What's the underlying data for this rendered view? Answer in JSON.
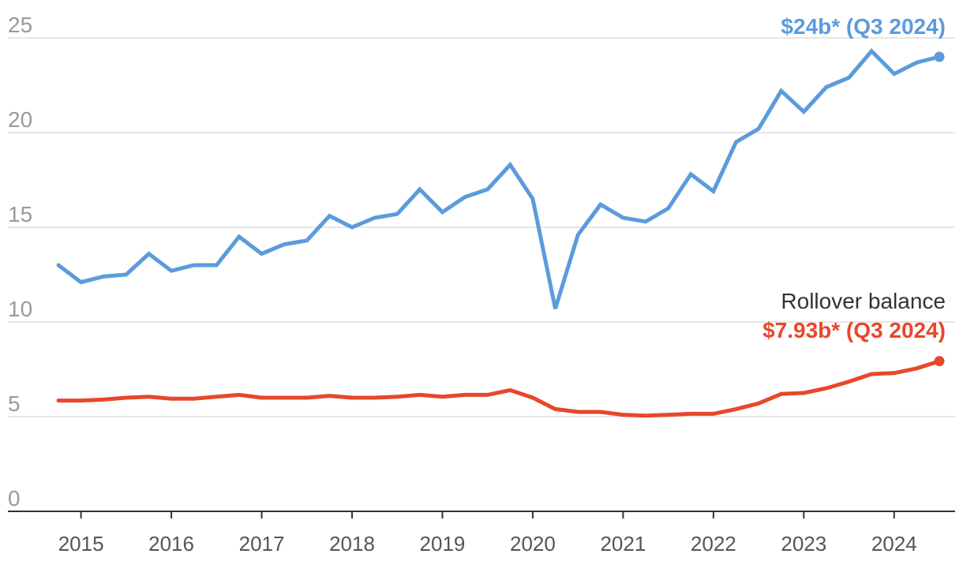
{
  "chart_data": {
    "type": "line",
    "title": "",
    "xlabel": "",
    "ylabel": "",
    "ylim": [
      0,
      25
    ],
    "yticks": [
      0,
      5,
      10,
      15,
      20,
      25
    ],
    "xticks": [
      "2015",
      "2016",
      "2017",
      "2018",
      "2019",
      "2020",
      "2021",
      "2022",
      "2023",
      "2024"
    ],
    "grid": true,
    "x": [
      "Q4 2014",
      "Q1 2015",
      "Q2 2015",
      "Q3 2015",
      "Q4 2015",
      "Q1 2016",
      "Q2 2016",
      "Q3 2016",
      "Q4 2016",
      "Q1 2017",
      "Q2 2017",
      "Q3 2017",
      "Q4 2017",
      "Q1 2018",
      "Q2 2018",
      "Q3 2018",
      "Q4 2018",
      "Q1 2019",
      "Q2 2019",
      "Q3 2019",
      "Q4 2019",
      "Q1 2020",
      "Q2 2020",
      "Q3 2020",
      "Q4 2020",
      "Q1 2021",
      "Q2 2021",
      "Q3 2021",
      "Q4 2021",
      "Q1 2022",
      "Q2 2022",
      "Q3 2022",
      "Q4 2022",
      "Q1 2023",
      "Q2 2023",
      "Q3 2023",
      "Q4 2023",
      "Q1 2024",
      "Q2 2024",
      "Q3 2024"
    ],
    "series": [
      {
        "name": "",
        "color": "#5b9bdc",
        "values": [
          13.0,
          12.1,
          12.4,
          12.5,
          13.6,
          12.7,
          13.0,
          13.0,
          14.5,
          13.6,
          14.1,
          14.3,
          15.6,
          15.0,
          15.5,
          15.7,
          17.0,
          15.8,
          16.6,
          17.0,
          18.3,
          16.5,
          10.7,
          14.6,
          16.2,
          15.5,
          15.3,
          16.0,
          17.8,
          16.9,
          19.5,
          20.2,
          22.2,
          21.1,
          22.4,
          22.9,
          24.3,
          23.1,
          23.7,
          24.0
        ]
      },
      {
        "name": "Rollover balance",
        "color": "#e8472a",
        "values": [
          5.85,
          5.85,
          5.9,
          6.0,
          6.05,
          5.95,
          5.95,
          6.05,
          6.15,
          6.0,
          6.0,
          6.0,
          6.1,
          6.0,
          6.0,
          6.05,
          6.15,
          6.05,
          6.15,
          6.15,
          6.4,
          6.0,
          5.4,
          5.25,
          5.25,
          5.1,
          5.05,
          5.1,
          5.15,
          5.15,
          5.4,
          5.7,
          6.2,
          6.25,
          6.5,
          6.85,
          7.25,
          7.3,
          7.55,
          7.93
        ]
      }
    ],
    "annotations": [
      {
        "series": 0,
        "value_text": "$24b* (Q3 2024)",
        "label": ""
      },
      {
        "series": 1,
        "value_text": "$7.93b* (Q3 2024)",
        "label": "Rollover balance"
      }
    ]
  }
}
